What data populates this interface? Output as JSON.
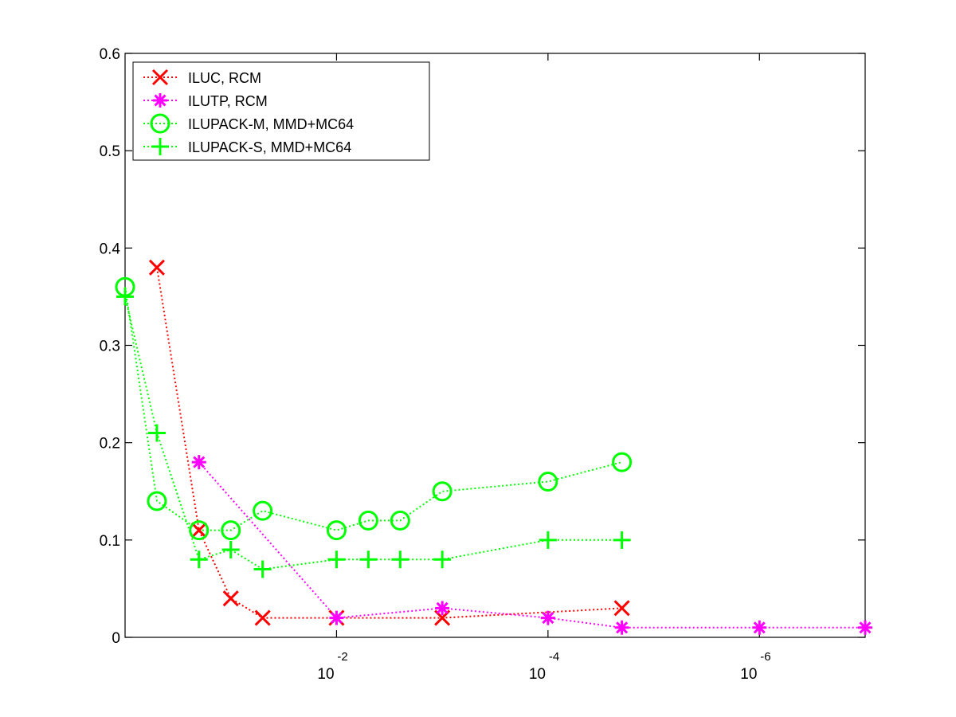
{
  "chart_data": {
    "type": "line",
    "title": "",
    "xlabel": "",
    "ylabel": "",
    "x_scale": "log-reversed",
    "xlim": [
      1,
      1e-07
    ],
    "ylim": [
      0,
      0.6
    ],
    "grid": false,
    "legend_position": "top-left",
    "y_ticks": [
      "0",
      "0.1",
      "0.2",
      "0.3",
      "0.4",
      "0.5",
      "0.6"
    ],
    "x_ticks": [
      {
        "value": 0.01,
        "base": "10",
        "exponent": "-2"
      },
      {
        "value": 0.0001,
        "base": "10",
        "exponent": "-4"
      },
      {
        "value": 1e-06,
        "base": "10",
        "exponent": "-6"
      }
    ],
    "series": [
      {
        "name": "ILUC, RCM",
        "color": "#ff0000",
        "marker": "x",
        "x": [
          0.5,
          0.2,
          0.1,
          0.05,
          0.01,
          0.001,
          2e-05
        ],
        "y": [
          0.38,
          0.11,
          0.04,
          0.02,
          0.02,
          0.02,
          0.03
        ]
      },
      {
        "name": "ILUTP, RCM",
        "color": "#ff00ff",
        "marker": "asterisk",
        "x": [
          0.2,
          0.01,
          0.001,
          0.0001,
          2e-05,
          1e-06,
          1e-07
        ],
        "y": [
          0.18,
          0.02,
          0.03,
          0.02,
          0.01,
          0.01,
          0.01
        ]
      },
      {
        "name": "ILUPACK-M, MMD+MC64",
        "color": "#00ff00",
        "marker": "circle",
        "x": [
          1,
          0.5,
          0.2,
          0.1,
          0.05,
          0.01,
          0.005,
          0.0025,
          0.001,
          0.0001,
          2e-05
        ],
        "y": [
          0.36,
          0.14,
          0.11,
          0.11,
          0.13,
          0.11,
          0.12,
          0.12,
          0.15,
          0.16,
          0.18
        ]
      },
      {
        "name": "ILUPACK-S, MMD+MC64",
        "color": "#00ff00",
        "marker": "plus",
        "x": [
          1,
          0.5,
          0.2,
          0.1,
          0.05,
          0.01,
          0.005,
          0.0025,
          0.001,
          0.0001,
          2e-05
        ],
        "y": [
          0.35,
          0.21,
          0.08,
          0.09,
          0.07,
          0.08,
          0.08,
          0.08,
          0.08,
          0.1,
          0.1
        ]
      }
    ]
  }
}
